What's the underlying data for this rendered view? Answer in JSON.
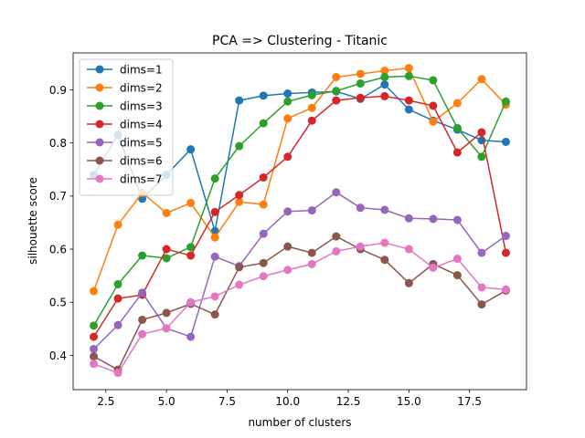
{
  "chart_data": {
    "type": "line",
    "title": "PCA => Clustering - Titanic",
    "xlabel": "number of clusters",
    "ylabel": "silhouette score",
    "xlim": [
      1.15,
      19.85
    ],
    "ylim": [
      0.3355,
      0.9695
    ],
    "xticks": [
      2.5,
      5.0,
      7.5,
      10.0,
      12.5,
      15.0,
      17.5
    ],
    "yticks": [
      0.4,
      0.5,
      0.6,
      0.7,
      0.8,
      0.9
    ],
    "xtick_labels": [
      "2.5",
      "5.0",
      "7.5",
      "10.0",
      "12.5",
      "15.0",
      "17.5"
    ],
    "ytick_labels": [
      "0.4",
      "0.5",
      "0.6",
      "0.7",
      "0.8",
      "0.9"
    ],
    "grid": false,
    "legend_position": "top-left",
    "x": [
      2,
      3,
      4,
      5,
      6,
      7,
      8,
      9,
      10,
      11,
      12,
      13,
      14,
      15,
      16,
      17,
      18,
      19
    ],
    "series": [
      {
        "name": "dims=1",
        "color": "#1f77b4",
        "values": [
          0.74,
          0.815,
          0.695,
          0.74,
          0.788,
          0.634,
          0.88,
          0.889,
          0.893,
          0.895,
          0.897,
          0.883,
          0.91,
          0.863,
          0.842,
          0.825,
          0.805,
          0.802
        ]
      },
      {
        "name": "dims=2",
        "color": "#ff7f0e",
        "values": [
          0.521,
          0.646,
          0.706,
          0.668,
          0.687,
          0.622,
          0.689,
          0.684,
          0.846,
          0.866,
          0.924,
          0.93,
          0.936,
          0.941,
          0.84,
          0.875,
          0.92,
          0.872
        ]
      },
      {
        "name": "dims=3",
        "color": "#2ca02c",
        "values": [
          0.456,
          0.534,
          0.588,
          0.583,
          0.604,
          0.733,
          0.794,
          0.837,
          0.878,
          0.89,
          0.898,
          0.912,
          0.924,
          0.926,
          0.918,
          0.828,
          0.774,
          0.878
        ]
      },
      {
        "name": "dims=4",
        "color": "#d62728",
        "values": [
          0.435,
          0.507,
          0.514,
          0.6,
          0.588,
          0.67,
          0.702,
          0.735,
          0.774,
          0.842,
          0.88,
          0.885,
          0.888,
          0.88,
          0.87,
          0.782,
          0.82,
          0.593
        ]
      },
      {
        "name": "dims=5",
        "color": "#9467bd",
        "values": [
          0.412,
          0.457,
          0.518,
          0.451,
          0.435,
          0.586,
          0.568,
          0.629,
          0.671,
          0.673,
          0.707,
          0.678,
          0.674,
          0.658,
          0.657,
          0.655,
          0.593,
          0.625
        ]
      },
      {
        "name": "dims=6",
        "color": "#8c564b",
        "values": [
          0.398,
          0.373,
          0.467,
          0.48,
          0.497,
          0.477,
          0.566,
          0.574,
          0.605,
          0.593,
          0.624,
          0.6,
          0.58,
          0.536,
          0.572,
          0.551,
          0.496,
          0.522
        ]
      },
      {
        "name": "dims=7",
        "color": "#e377c2",
        "values": [
          0.384,
          0.367,
          0.44,
          0.451,
          0.5,
          0.511,
          0.533,
          0.549,
          0.561,
          0.572,
          0.596,
          0.605,
          0.612,
          0.6,
          0.565,
          0.582,
          0.528,
          0.524
        ]
      }
    ]
  }
}
